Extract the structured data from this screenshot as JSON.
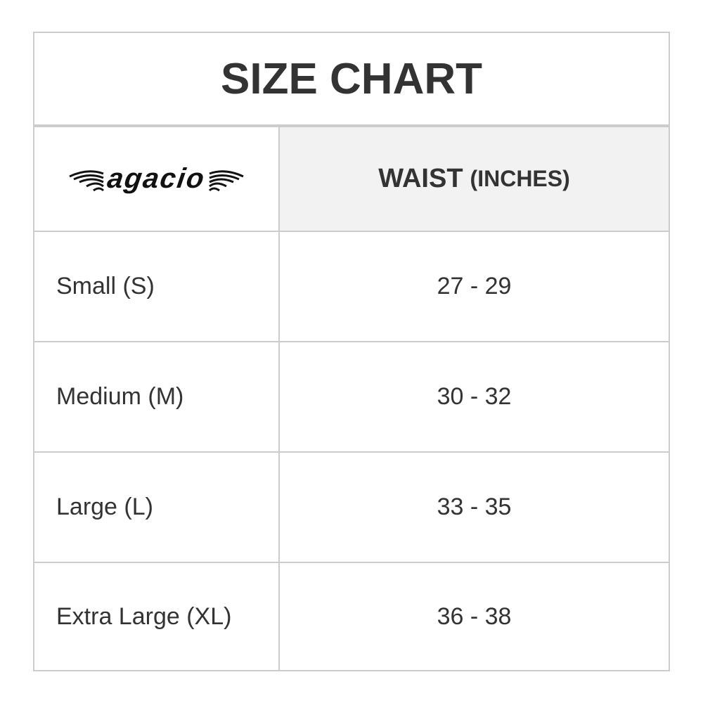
{
  "title": "SIZE CHART",
  "logo": {
    "text": "agacio",
    "icon": "winged-logo"
  },
  "header": {
    "measure": "WAIST",
    "unit": "(INCHES)"
  },
  "rows": [
    {
      "size": "Small (S)",
      "waist": "27 - 29"
    },
    {
      "size": "Medium (M)",
      "waist": "30 - 32"
    },
    {
      "size": "Large (L)",
      "waist": "33 - 35"
    },
    {
      "size": "Extra Large (XL)",
      "waist": "36 - 38"
    }
  ],
  "colors": {
    "border": "#cccccc",
    "header_bg": "#f2f2f2",
    "text": "#333333"
  }
}
